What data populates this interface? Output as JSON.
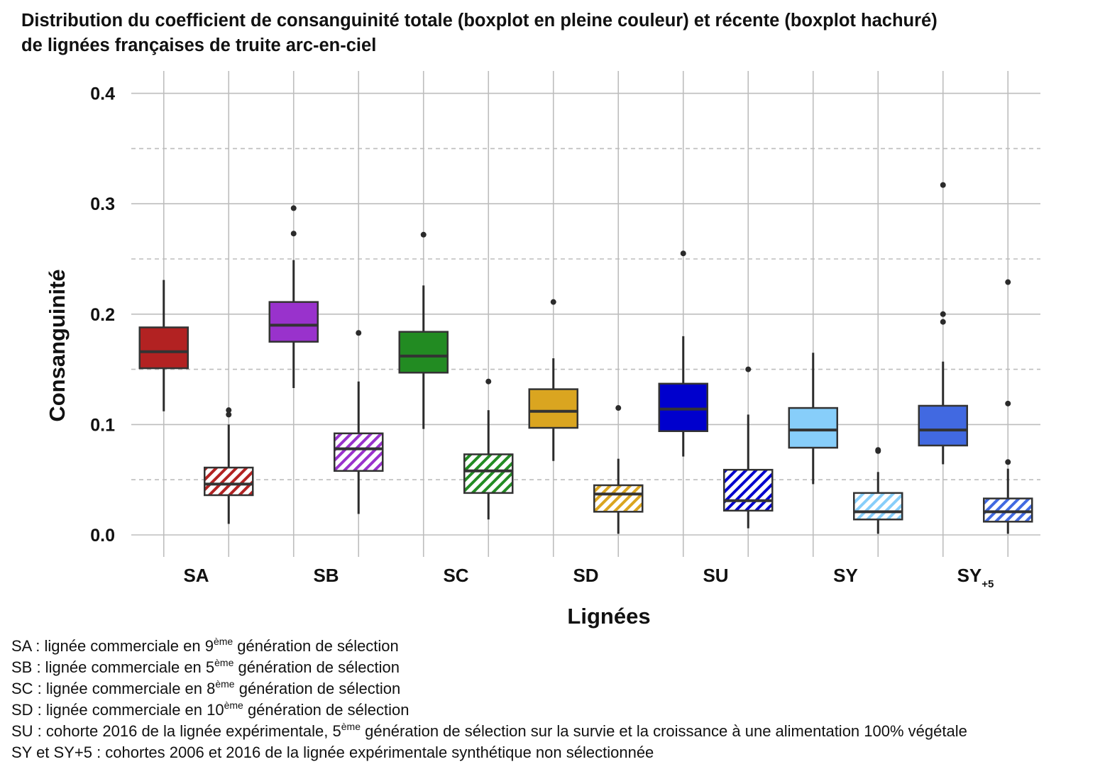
{
  "title_lines": [
    "Distribution du coefficient de consanguinité totale (boxplot en pleine couleur) et récente (boxplot hachuré)",
    "de lignées françaises de truite arc-en-ciel"
  ],
  "chart_data": {
    "type": "boxplot",
    "xlabel": "Lignées",
    "ylabel": "Consanguinité",
    "ylim": [
      -0.017,
      0.418
    ],
    "yticks": [
      0.0,
      0.1,
      0.2,
      0.3,
      0.4
    ],
    "ytick_labels": [
      "0.0",
      "0.1",
      "0.2",
      "0.3",
      "0.4"
    ],
    "minor_gridlines": [
      0.05,
      0.15,
      0.25,
      0.35
    ],
    "grid": true,
    "series": [
      {
        "name": "totale",
        "style": "filled"
      },
      {
        "name": "récente",
        "style": "hatched"
      }
    ],
    "categories": [
      {
        "label": "SA",
        "sub": "",
        "color": "#b22222",
        "total": {
          "min": 0.112,
          "q1": 0.151,
          "median": 0.166,
          "q3": 0.188,
          "max": 0.231,
          "outliers": []
        },
        "recent": {
          "min": 0.01,
          "q1": 0.036,
          "median": 0.046,
          "q3": 0.061,
          "max": 0.1,
          "outliers": [
            0.109,
            0.113
          ]
        }
      },
      {
        "label": "SB",
        "sub": "",
        "color": "#9932cc",
        "total": {
          "min": 0.133,
          "q1": 0.175,
          "median": 0.19,
          "q3": 0.211,
          "max": 0.249,
          "outliers": [
            0.273,
            0.296
          ]
        },
        "recent": {
          "min": 0.019,
          "q1": 0.058,
          "median": 0.078,
          "q3": 0.092,
          "max": 0.139,
          "outliers": [
            0.183
          ]
        }
      },
      {
        "label": "SC",
        "sub": "",
        "color": "#228b22",
        "total": {
          "min": 0.096,
          "q1": 0.147,
          "median": 0.162,
          "q3": 0.184,
          "max": 0.226,
          "outliers": [
            0.272
          ]
        },
        "recent": {
          "min": 0.014,
          "q1": 0.038,
          "median": 0.058,
          "q3": 0.073,
          "max": 0.113,
          "outliers": [
            0.139
          ]
        }
      },
      {
        "label": "SD",
        "sub": "",
        "color": "#daa520",
        "total": {
          "min": 0.067,
          "q1": 0.097,
          "median": 0.112,
          "q3": 0.132,
          "max": 0.16,
          "outliers": [
            0.211
          ]
        },
        "recent": {
          "min": 0.001,
          "q1": 0.021,
          "median": 0.037,
          "q3": 0.045,
          "max": 0.069,
          "outliers": [
            0.115
          ]
        }
      },
      {
        "label": "SU",
        "sub": "",
        "color": "#0000cd",
        "total": {
          "min": 0.071,
          "q1": 0.094,
          "median": 0.114,
          "q3": 0.137,
          "max": 0.18,
          "outliers": [
            0.255
          ]
        },
        "recent": {
          "min": 0.006,
          "q1": 0.022,
          "median": 0.031,
          "q3": 0.059,
          "max": 0.109,
          "outliers": [
            0.15
          ]
        }
      },
      {
        "label": "SY",
        "sub": "",
        "color": "#87cefa",
        "total": {
          "min": 0.046,
          "q1": 0.079,
          "median": 0.095,
          "q3": 0.115,
          "max": 0.165,
          "outliers": []
        },
        "recent": {
          "min": 0.001,
          "q1": 0.014,
          "median": 0.021,
          "q3": 0.038,
          "max": 0.057,
          "outliers": [
            0.076,
            0.077
          ]
        }
      },
      {
        "label": "SY",
        "sub": "+5",
        "color": "#4169e1",
        "total": {
          "min": 0.064,
          "q1": 0.081,
          "median": 0.095,
          "q3": 0.117,
          "max": 0.157,
          "outliers": [
            0.193,
            0.2,
            0.317
          ]
        },
        "recent": {
          "min": 0.001,
          "q1": 0.012,
          "median": 0.021,
          "q3": 0.033,
          "max": 0.06,
          "outliers": [
            0.066,
            0.119,
            0.229
          ]
        }
      }
    ]
  },
  "notes": [
    {
      "pre": "SA : lignée commerciale en 9",
      "sup": "ème",
      "post": " génération de sélection"
    },
    {
      "pre": "SB : lignée commerciale en 5",
      "sup": "ème",
      "post": " génération de sélection"
    },
    {
      "pre": "SC : lignée commerciale en 8",
      "sup": "ème",
      "post": " génération de sélection"
    },
    {
      "pre": "SD : lignée commerciale en 10",
      "sup": "ème",
      "post": " génération de sélection"
    },
    {
      "pre": "SU : cohorte 2016 de la lignée expérimentale, 5",
      "sup": "ème",
      "post": " génération de sélection sur la survie et la croissance à une alimentation 100% végétale"
    },
    {
      "pre": "SY et SY+5 : cohortes 2006 et 2016 de la lignée expérimentale synthétique non sélectionnée",
      "sup": "",
      "post": ""
    }
  ]
}
